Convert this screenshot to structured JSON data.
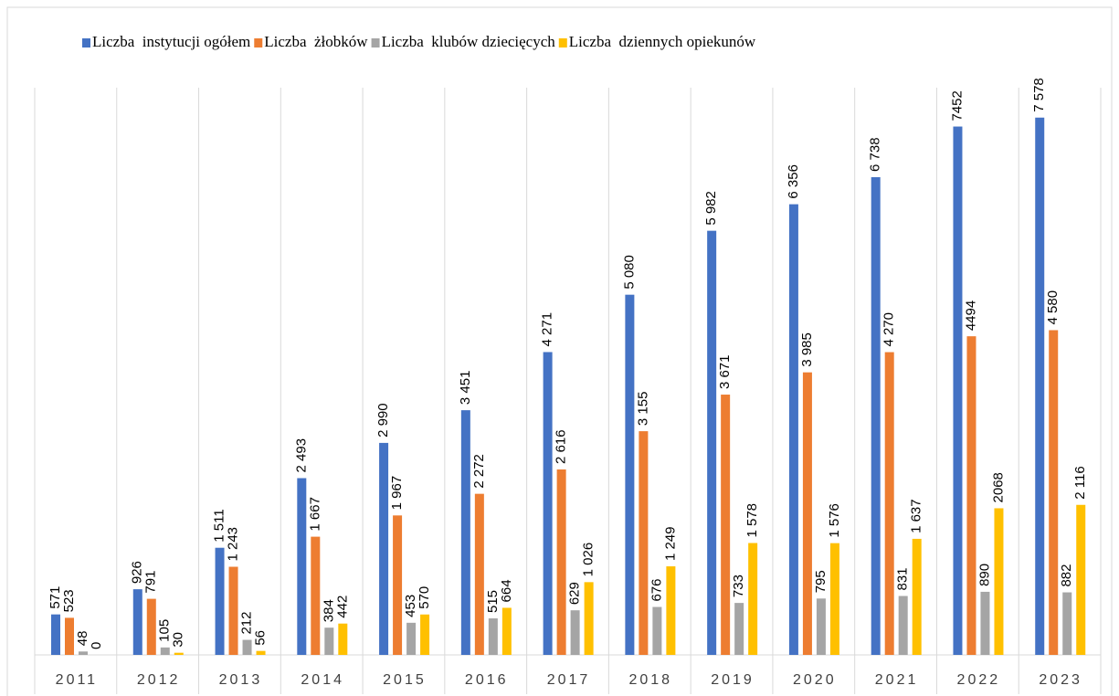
{
  "chart_data": {
    "type": "bar",
    "categories": [
      "2011",
      "2012",
      "2013",
      "2014",
      "2015",
      "2016",
      "2017",
      "2018",
      "2019",
      "2020",
      "2021",
      "2022",
      "2023"
    ],
    "series": [
      {
        "name": "Liczba  instytucji ogółem",
        "color": "#4472c4",
        "values": [
          571,
          926,
          1511,
          2493,
          2990,
          3451,
          4271,
          5080,
          5982,
          6356,
          6738,
          7452,
          7578
        ],
        "value_labels": [
          "571",
          "926",
          "1 511",
          "2 493",
          "2 990",
          "3 451",
          "4 271",
          "5 080",
          "5 982",
          "6 356",
          "6 738",
          "7452",
          "7 578"
        ]
      },
      {
        "name": "Liczba  żłobków",
        "color": "#ed7d31",
        "values": [
          523,
          791,
          1243,
          1667,
          1967,
          2272,
          2616,
          3155,
          3671,
          3985,
          4270,
          4494,
          4580
        ],
        "value_labels": [
          "523",
          "791",
          "1 243",
          "1 667",
          "1 967",
          "2 272",
          "2 616",
          "3 155",
          "3 671",
          "3 985",
          "4 270",
          "4494",
          "4 580"
        ]
      },
      {
        "name": "Liczba  klubów dziecięcych",
        "color": "#a5a5a5",
        "values": [
          48,
          105,
          212,
          384,
          453,
          515,
          629,
          676,
          733,
          795,
          831,
          890,
          882
        ],
        "value_labels": [
          "48",
          "105",
          "212",
          "384",
          "453",
          "515",
          "629",
          "676",
          "733",
          "795",
          "831",
          "890",
          "882"
        ]
      },
      {
        "name": "Liczba  dziennych opiekunów",
        "color": "#ffc000",
        "values": [
          0,
          30,
          56,
          442,
          570,
          664,
          1026,
          1249,
          1578,
          1576,
          1637,
          2068,
          2116
        ],
        "value_labels": [
          "0",
          "30",
          "56",
          "442",
          "570",
          "664",
          "1 026",
          "1 249",
          "1 578",
          "1 576",
          "1 637",
          "2068",
          "2 116"
        ]
      }
    ],
    "ylim": [
      0,
      8000
    ]
  }
}
